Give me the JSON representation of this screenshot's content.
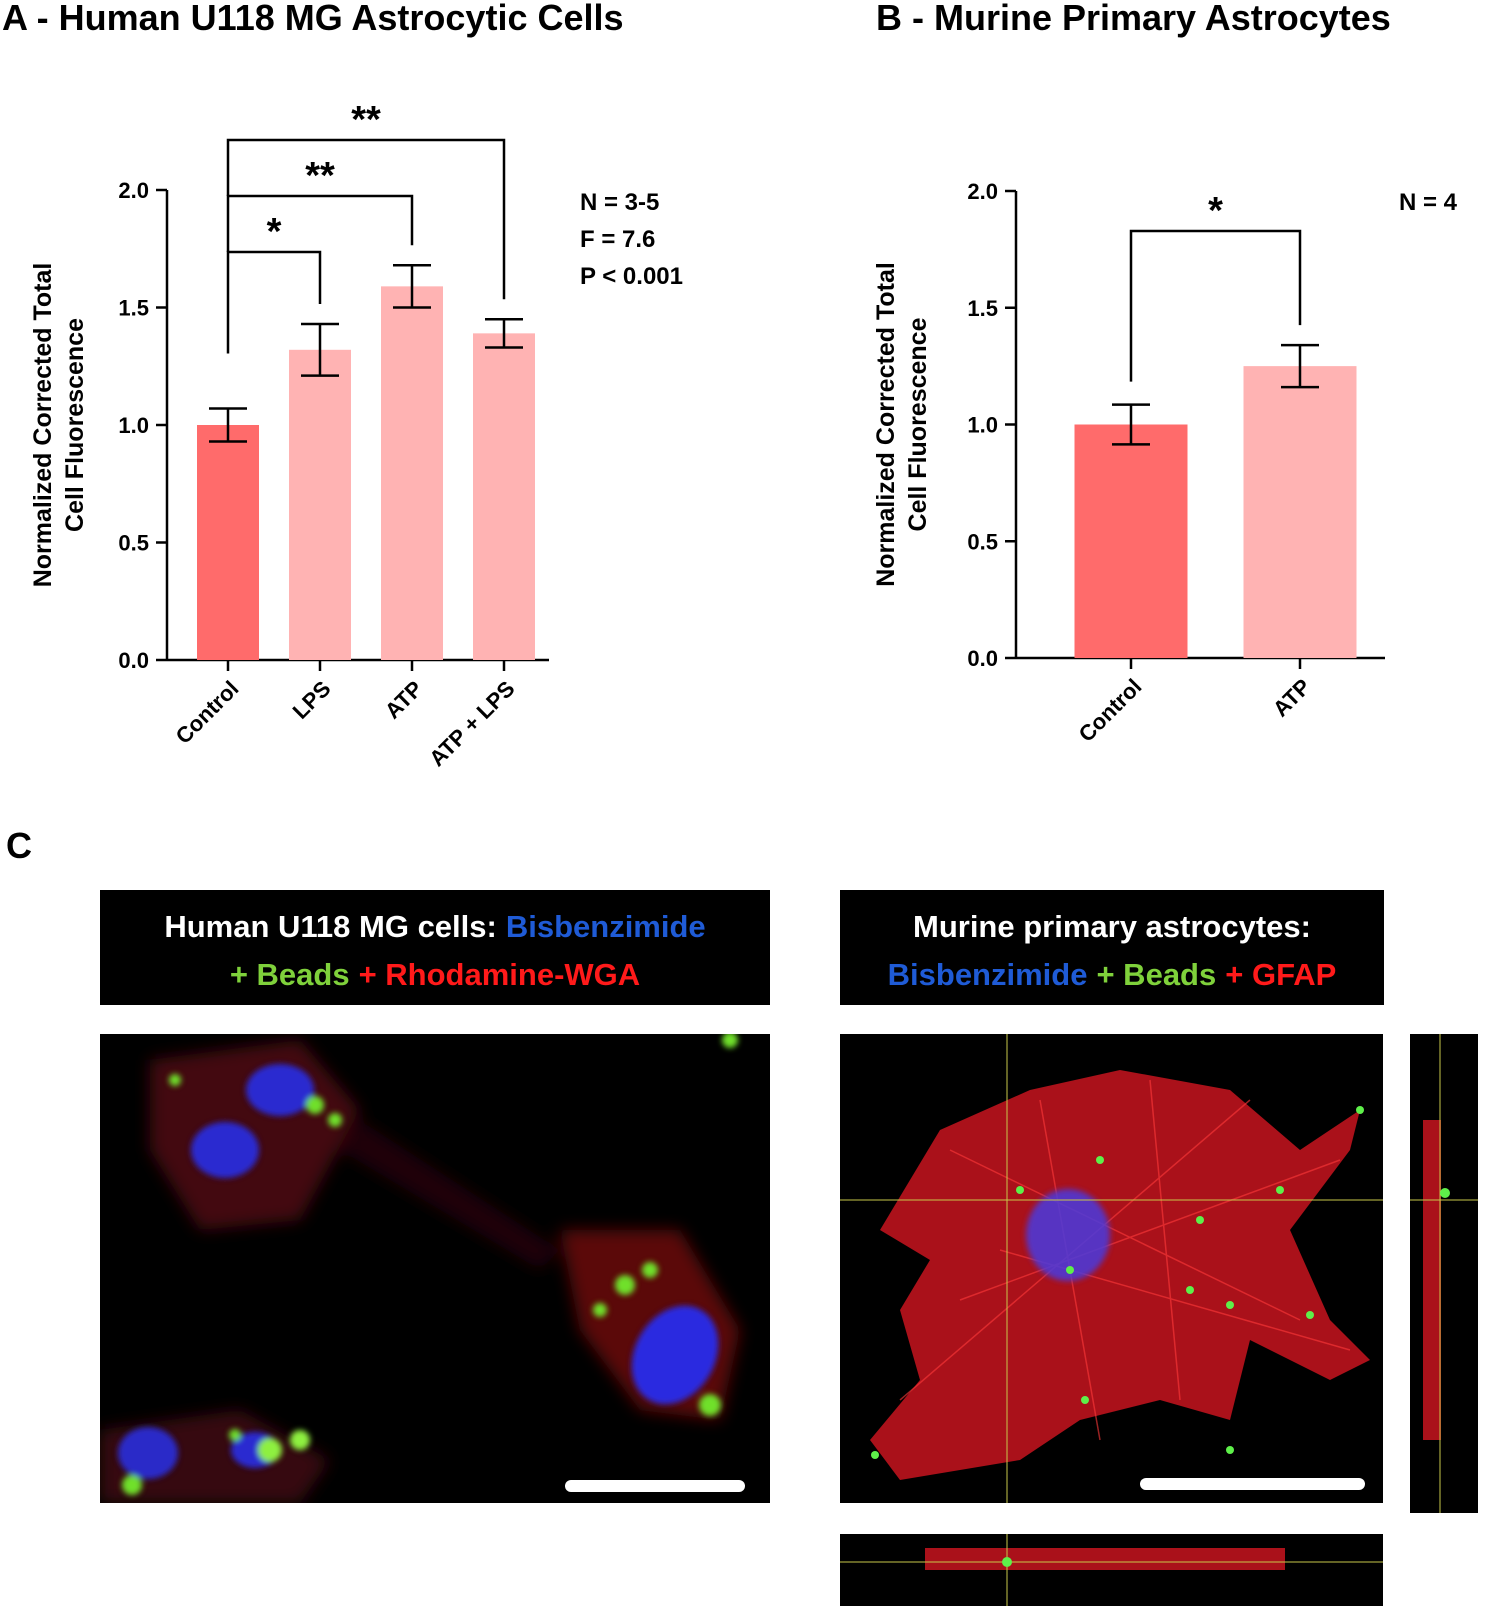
{
  "chart_data": [
    {
      "type": "bar",
      "title": "A - Human U118 MG Astrocytic Cells",
      "ylabel": [
        "Normalized Corrected Total",
        "Cell Fluorescence"
      ],
      "categories": [
        "Control",
        "LPS",
        "ATP",
        "ATP + LPS"
      ],
      "values": [
        1.0,
        1.32,
        1.59,
        1.39
      ],
      "errors": [
        0.07,
        0.11,
        0.09,
        0.06
      ],
      "colors": [
        "#ff6b6b",
        "#ffb3b3",
        "#ffb3b3",
        "#ffb3b3"
      ],
      "ylim": [
        0,
        2
      ],
      "yticks": [
        {
          "value": 0,
          "label": "0.0"
        },
        0.5,
        {
          "value": 1,
          "label": "1.0"
        },
        1.5,
        {
          "value": 2,
          "label": "2.0"
        }
      ],
      "significance": [
        "*",
        "**",
        "**"
      ],
      "stats": [
        "N = 3-5",
        "F = 7.6",
        "P < 0.001"
      ]
    },
    {
      "type": "bar",
      "title": "B - Murine Primary Astrocytes",
      "ylabel": [
        "Normalized Corrected Total",
        "Cell Fluorescence"
      ],
      "categories": [
        "Control",
        "ATP"
      ],
      "values": [
        1.0,
        1.25
      ],
      "errors": [
        0.085,
        0.09
      ],
      "colors": [
        "#ff6b6b",
        "#ffb3b3"
      ],
      "ylim": [
        0,
        2
      ],
      "yticks": [
        {
          "value": 0,
          "label": "0.0"
        },
        0.5,
        {
          "value": 1,
          "label": "1.0"
        },
        1.5,
        {
          "value": 2,
          "label": "2.0"
        }
      ],
      "significance": [
        "*"
      ],
      "stats": [
        "N = 4"
      ]
    }
  ],
  "panel_c": {
    "label": "C",
    "left_caption": [
      [
        {
          "text": "Human U118 MG cells:",
          "color": "#ffffff"
        },
        {
          "text": "Bisbenzimide",
          "color": "#1f5bd6"
        }
      ],
      [
        {
          "text": "+ Beads",
          "color": "#7fd13b"
        },
        {
          "text": "+ Rhodamine-WGA",
          "color": "#ff1a1a"
        }
      ]
    ],
    "right_caption": [
      [
        {
          "text": "Murine primary astrocytes:",
          "color": "#ffffff"
        }
      ],
      [
        {
          "text": "Bisbenzimide",
          "color": "#1f5bd6"
        },
        {
          "text": "+ Beads",
          "color": "#7fd13b"
        },
        {
          "text": "+ GFAP",
          "color": "#ff1a1a"
        }
      ]
    ]
  }
}
